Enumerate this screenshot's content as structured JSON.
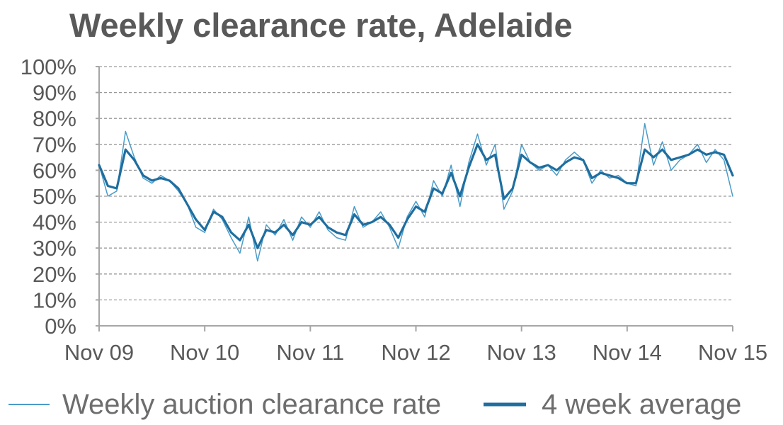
{
  "chart_data": {
    "type": "line",
    "title": "Weekly clearance rate, Adelaide",
    "xlabel": "",
    "ylabel": "",
    "ylim": [
      0,
      100
    ],
    "xlim": [
      "2009-11",
      "2015-11"
    ],
    "y_ticks": [
      "0%",
      "10%",
      "20%",
      "30%",
      "40%",
      "50%",
      "60%",
      "70%",
      "80%",
      "90%",
      "100%"
    ],
    "x_ticks": [
      "Nov 09",
      "Nov 10",
      "Nov 11",
      "Nov 12",
      "Nov 13",
      "Nov 14",
      "Nov 15"
    ],
    "grid": true,
    "legend_position": "bottom",
    "x": [
      "2009-11",
      "2009-12",
      "2010-01",
      "2010-02",
      "2010-03",
      "2010-04",
      "2010-05",
      "2010-06",
      "2010-07",
      "2010-08",
      "2010-09",
      "2010-10",
      "2010-11",
      "2010-12",
      "2011-01",
      "2011-02",
      "2011-03",
      "2011-04",
      "2011-05",
      "2011-06",
      "2011-07",
      "2011-08",
      "2011-09",
      "2011-10",
      "2011-11",
      "2011-12",
      "2012-01",
      "2012-02",
      "2012-03",
      "2012-04",
      "2012-05",
      "2012-06",
      "2012-07",
      "2012-08",
      "2012-09",
      "2012-10",
      "2012-11",
      "2012-12",
      "2013-01",
      "2013-02",
      "2013-03",
      "2013-04",
      "2013-05",
      "2013-06",
      "2013-07",
      "2013-08",
      "2013-09",
      "2013-10",
      "2013-11",
      "2013-12",
      "2014-01",
      "2014-02",
      "2014-03",
      "2014-04",
      "2014-05",
      "2014-06",
      "2014-07",
      "2014-08",
      "2014-09",
      "2014-10",
      "2014-11",
      "2014-12",
      "2015-01",
      "2015-02",
      "2015-03",
      "2015-04",
      "2015-05",
      "2015-06",
      "2015-07",
      "2015-08",
      "2015-09",
      "2015-10",
      "2015-11"
    ],
    "series": [
      {
        "name": "Weekly auction clearance rate",
        "color": "#4a9cc9",
        "values": [
          62,
          50,
          52,
          75,
          65,
          57,
          55,
          58,
          56,
          52,
          47,
          38,
          36,
          45,
          41,
          34,
          28,
          42,
          25,
          39,
          35,
          41,
          33,
          42,
          38,
          44,
          37,
          34,
          33,
          46,
          38,
          40,
          44,
          38,
          30,
          42,
          48,
          42,
          56,
          50,
          62,
          46,
          63,
          74,
          62,
          70,
          45,
          52,
          70,
          63,
          60,
          62,
          58,
          64,
          67,
          64,
          55,
          60,
          57,
          58,
          55,
          54,
          78,
          62,
          71,
          60,
          64,
          66,
          70,
          63,
          68,
          64,
          50
        ]
      },
      {
        "name": "4 week average",
        "color": "#1f6e9f",
        "values": [
          62,
          54,
          53,
          68,
          64,
          58,
          56,
          57,
          56,
          53,
          47,
          41,
          37,
          44,
          42,
          36,
          33,
          39,
          30,
          37,
          36,
          39,
          35,
          40,
          39,
          42,
          38,
          36,
          35,
          43,
          39,
          40,
          42,
          39,
          34,
          41,
          46,
          44,
          53,
          51,
          59,
          50,
          61,
          70,
          64,
          66,
          49,
          53,
          66,
          63,
          61,
          62,
          60,
          63,
          65,
          64,
          57,
          59,
          58,
          57,
          55,
          55,
          68,
          65,
          68,
          64,
          65,
          66,
          68,
          66,
          67,
          66,
          58
        ]
      }
    ]
  }
}
